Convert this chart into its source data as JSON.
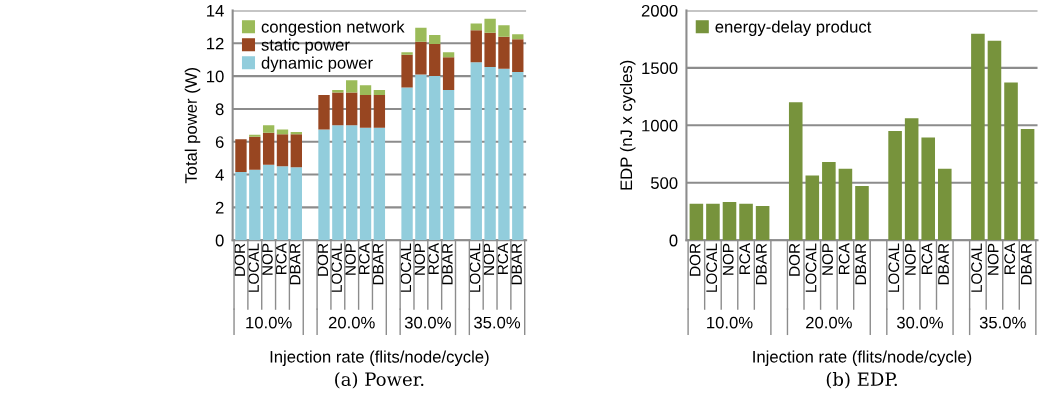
{
  "chart_data": [
    {
      "type": "bar",
      "stacked": true,
      "title": "(a) Power.",
      "xlabel": "Injection rate (flits/node/cycle)",
      "ylabel": "Total power (W)",
      "categories": [
        "DOR",
        "LOCAL",
        "NOP",
        "RCA",
        "DBAR",
        null,
        "DOR",
        "LOCAL",
        "NOP",
        "RCA",
        "DBAR",
        null,
        "LOCAL",
        "NOP",
        "RCA",
        "DBAR",
        null,
        "LOCAL",
        "NOP",
        "RCA",
        "DBAR"
      ],
      "series": [
        {
          "name": "dynamic power",
          "color": "#92cddc",
          "values": [
            4.15,
            4.3,
            4.6,
            4.5,
            4.45,
            null,
            6.75,
            7.0,
            7.0,
            6.85,
            6.85,
            null,
            9.3,
            10.1,
            10.0,
            9.15,
            null,
            10.85,
            10.55,
            10.45,
            10.25
          ]
        },
        {
          "name": "static power",
          "color": "#984621",
          "values": [
            2.0,
            2.0,
            1.95,
            1.95,
            2.0,
            null,
            2.1,
            2.0,
            2.0,
            2.0,
            2.0,
            null,
            2.0,
            2.0,
            1.95,
            2.0,
            null,
            1.95,
            2.1,
            1.95,
            2.0
          ]
        },
        {
          "name": "congestion network",
          "color": "#9bbb59",
          "values": [
            0,
            0.12,
            0.45,
            0.3,
            0.15,
            null,
            0,
            0.15,
            0.75,
            0.6,
            0.3,
            null,
            0.15,
            0.85,
            0.55,
            0.3,
            null,
            0.4,
            0.85,
            0.7,
            0.3
          ]
        }
      ],
      "annotations": [
        "10.0%",
        "20.0%",
        "30.0%",
        "35.0%"
      ],
      "ylim": [
        0,
        14
      ],
      "yticks": [
        0,
        2,
        4,
        6,
        8,
        10,
        12,
        14
      ],
      "grid": "y",
      "legend": "top left"
    },
    {
      "type": "bar",
      "title": "(b) EDP.",
      "xlabel": "Injection rate (flits/node/cycle)",
      "ylabel": "EDP (nJ x cycles)",
      "categories": [
        "DOR",
        "LOCAL",
        "NOP",
        "RCA",
        "DBAR",
        null,
        "DOR",
        "LOCAL",
        "NOP",
        "RCA",
        "DBAR",
        null,
        "LOCAL",
        "NOP",
        "RCA",
        "DBAR",
        null,
        "LOCAL",
        "NOP",
        "RCA",
        "DBAR"
      ],
      "series": [
        {
          "name": "energy-delay product",
          "color": "#77933c",
          "values": [
            317,
            317,
            333,
            317,
            297,
            null,
            1200,
            564,
            681,
            622,
            472,
            null,
            950,
            1061,
            894,
            622,
            null,
            1797,
            1736,
            1372,
            967
          ]
        }
      ],
      "annotations": [
        "10.0%",
        "20.0%",
        "30.0%",
        "35.0%"
      ],
      "ylim": [
        0,
        2000
      ],
      "yticks": [
        0,
        500,
        1000,
        1500,
        2000
      ],
      "grid": "y",
      "legend": "top left"
    }
  ]
}
